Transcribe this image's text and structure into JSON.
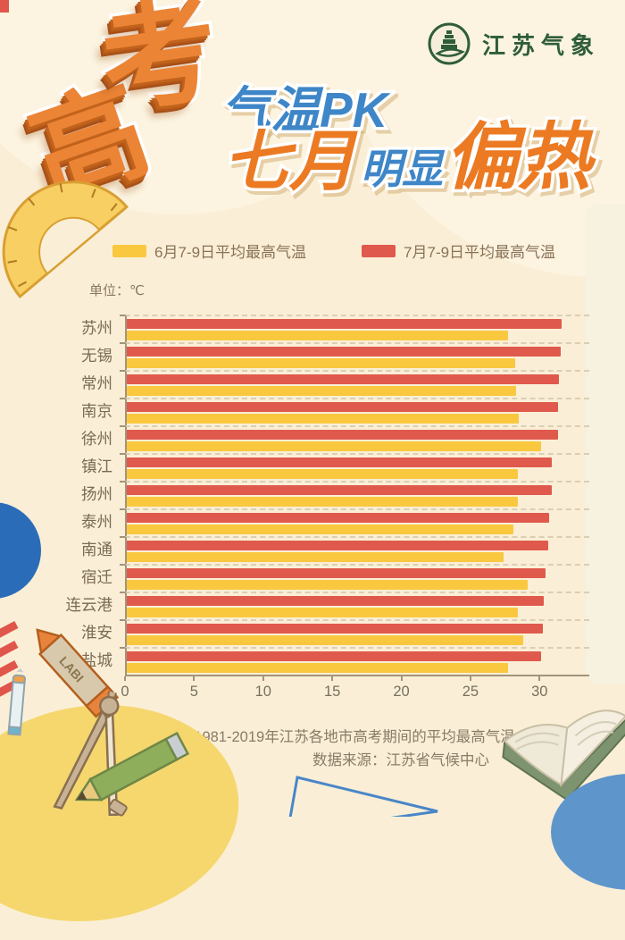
{
  "poster": {
    "brand": {
      "name": "江苏气象"
    },
    "title": {
      "calligraphy_chars": [
        "高",
        "考"
      ],
      "line1": "气温PK",
      "line2_part1": "七月",
      "line2_part2": "明显",
      "line2_part3": "偏热"
    },
    "legend": [
      {
        "label": "6月7-9日平均最高气温",
        "color": "#F9C83F"
      },
      {
        "label": "7月7-9日平均最高气温",
        "color": "#E0594D"
      }
    ],
    "unit_label": "单位：℃",
    "notes": {
      "line1": "注：图为1981-2019年江苏各地市高考期间的平均最高气温",
      "line2": "数据来源：江苏省气候中心"
    },
    "colors": {
      "background": "#FAEFD6",
      "june_bar": "#F9C83F",
      "july_bar": "#E0594D",
      "title_orange": "#EC7A22",
      "title_blue": "#3E86C7",
      "axis_brown": "#A4937B",
      "logo_green": "#2F5D3A"
    }
  },
  "chart_data": {
    "type": "bar",
    "orientation": "horizontal",
    "title": "高考气温PK 七月明显偏热",
    "unit": "℃",
    "categories": [
      "苏州",
      "无锡",
      "常州",
      "南京",
      "徐州",
      "镇江",
      "扬州",
      "泰州",
      "南通",
      "宿迁",
      "连云港",
      "淮安",
      "盐城"
    ],
    "series": [
      {
        "name": "7月7-9日平均最高气温",
        "color": "#E0594D",
        "values": [
          31.6,
          31.5,
          31.4,
          31.3,
          31.3,
          30.9,
          30.9,
          30.7,
          30.6,
          30.4,
          30.3,
          30.2,
          30.1
        ]
      },
      {
        "name": "6月7-9日平均最高气温",
        "color": "#F9C83F",
        "values": [
          27.7,
          28.2,
          28.3,
          28.5,
          30.1,
          28.4,
          28.4,
          28.1,
          27.4,
          29.1,
          28.4,
          28.8,
          27.7
        ]
      }
    ],
    "x_ticks": [
      0,
      5,
      10,
      15,
      20,
      25,
      30
    ],
    "xlim": [
      0,
      33.6
    ],
    "xlabel": "",
    "ylabel": "",
    "grid": "dashed-row-separators",
    "legend_position": "top"
  }
}
